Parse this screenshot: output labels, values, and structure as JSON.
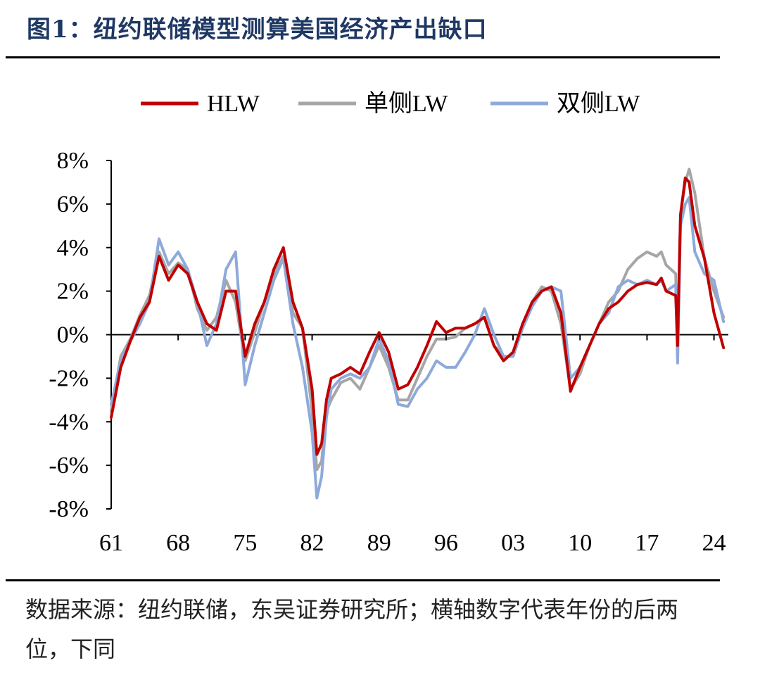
{
  "title": "图1：纽约联储模型测算美国经济产出缺口",
  "source_note": "数据来源：纽约联储，东吴证券研究所；横轴数字代表年份的后两位，下同",
  "chart_data": {
    "type": "line",
    "title": "纽约联储模型测算美国经济产出缺口",
    "xlabel": "",
    "ylabel": "",
    "x_range": [
      1961,
      2025.5
    ],
    "ylim": [
      -8,
      8
    ],
    "x_ticks": [
      1961,
      1968,
      1975,
      1982,
      1989,
      1996,
      2003,
      2010,
      2017,
      2024
    ],
    "x_tick_labels": [
      "61",
      "68",
      "75",
      "82",
      "89",
      "96",
      "03",
      "10",
      "17",
      "24"
    ],
    "y_ticks": [
      8,
      6,
      4,
      2,
      0,
      -2,
      -4,
      -6,
      -8
    ],
    "y_tick_labels": [
      "8%",
      "6%",
      "4%",
      "2%",
      "0%",
      "-2%",
      "-4%",
      "-6%",
      "-8%"
    ],
    "legend_position": "top-center",
    "series": [
      {
        "name": "单侧LW",
        "color": "#a6a6a6",
        "points": [
          [
            1961,
            -3.5
          ],
          [
            1962,
            -1.0
          ],
          [
            1963,
            -0.2
          ],
          [
            1964,
            0.9
          ],
          [
            1965,
            1.8
          ],
          [
            1966,
            3.8
          ],
          [
            1967,
            2.8
          ],
          [
            1968,
            3.3
          ],
          [
            1969,
            3.0
          ],
          [
            1970,
            1.2
          ],
          [
            1971,
            0.2
          ],
          [
            1972,
            0.8
          ],
          [
            1973,
            2.5
          ],
          [
            1974,
            1.5
          ],
          [
            1975,
            -1.2
          ],
          [
            1976,
            0.1
          ],
          [
            1977,
            1.5
          ],
          [
            1978,
            2.8
          ],
          [
            1979,
            3.6
          ],
          [
            1980,
            1.0
          ],
          [
            1981,
            0.3
          ],
          [
            1982,
            -3.5
          ],
          [
            1982.5,
            -6.2
          ],
          [
            1983,
            -5.8
          ],
          [
            1983.5,
            -3.5
          ],
          [
            1984,
            -3.0
          ],
          [
            1985,
            -2.2
          ],
          [
            1986,
            -2.0
          ],
          [
            1987,
            -2.5
          ],
          [
            1988,
            -1.5
          ],
          [
            1989,
            -0.5
          ],
          [
            1990,
            -1.5
          ],
          [
            1991,
            -3.0
          ],
          [
            1992,
            -3.0
          ],
          [
            1993,
            -2.0
          ],
          [
            1994,
            -1.0
          ],
          [
            1995,
            -0.2
          ],
          [
            1996,
            -0.2
          ],
          [
            1997,
            -0.1
          ],
          [
            1998,
            0.3
          ],
          [
            1999,
            0.5
          ],
          [
            2000,
            0.8
          ],
          [
            2001,
            -0.5
          ],
          [
            2002,
            -1.0
          ],
          [
            2003,
            -1.0
          ],
          [
            2004,
            0.5
          ],
          [
            2005,
            1.5
          ],
          [
            2006,
            2.2
          ],
          [
            2007,
            2.0
          ],
          [
            2008,
            0.5
          ],
          [
            2009,
            -2.5
          ],
          [
            2010,
            -1.8
          ],
          [
            2011,
            -0.5
          ],
          [
            2012,
            0.5
          ],
          [
            2013,
            1.5
          ],
          [
            2014,
            2.0
          ],
          [
            2015,
            3.0
          ],
          [
            2016,
            3.5
          ],
          [
            2017,
            3.8
          ],
          [
            2018,
            3.6
          ],
          [
            2018.5,
            3.8
          ],
          [
            2019,
            3.2
          ],
          [
            2020,
            2.8
          ],
          [
            2020.2,
            -0.8
          ],
          [
            2020.5,
            5.5
          ],
          [
            2021,
            7.0
          ],
          [
            2021.4,
            7.6
          ],
          [
            2022,
            6.5
          ],
          [
            2023,
            3.5
          ],
          [
            2024,
            2.0
          ],
          [
            2025,
            0.8
          ]
        ]
      },
      {
        "name": "双侧LW",
        "color": "#8eaadb",
        "points": [
          [
            1961,
            -3.2
          ],
          [
            1962,
            -1.2
          ],
          [
            1963,
            -0.3
          ],
          [
            1964,
            0.5
          ],
          [
            1965,
            1.5
          ],
          [
            1966,
            4.4
          ],
          [
            1967,
            3.2
          ],
          [
            1968,
            3.8
          ],
          [
            1969,
            3.0
          ],
          [
            1970,
            1.5
          ],
          [
            1971,
            -0.5
          ],
          [
            1972,
            0.5
          ],
          [
            1973,
            3.0
          ],
          [
            1974,
            3.8
          ],
          [
            1975,
            -2.3
          ],
          [
            1976,
            -0.5
          ],
          [
            1977,
            1.0
          ],
          [
            1978,
            2.5
          ],
          [
            1979,
            3.5
          ],
          [
            1980,
            0.5
          ],
          [
            1981,
            -1.5
          ],
          [
            1982,
            -4.5
          ],
          [
            1982.5,
            -7.5
          ],
          [
            1983,
            -6.5
          ],
          [
            1983.5,
            -3.8
          ],
          [
            1984,
            -2.5
          ],
          [
            1985,
            -2.0
          ],
          [
            1986,
            -1.8
          ],
          [
            1987,
            -2.0
          ],
          [
            1988,
            -1.5
          ],
          [
            1989,
            -0.2
          ],
          [
            1990,
            -1.2
          ],
          [
            1991,
            -3.2
          ],
          [
            1992,
            -3.3
          ],
          [
            1993,
            -2.5
          ],
          [
            1994,
            -2.0
          ],
          [
            1995,
            -1.2
          ],
          [
            1996,
            -1.5
          ],
          [
            1997,
            -1.5
          ],
          [
            1998,
            -0.8
          ],
          [
            1999,
            0.0
          ],
          [
            2000,
            1.2
          ],
          [
            2001,
            0.0
          ],
          [
            2002,
            -1.0
          ],
          [
            2003,
            -1.0
          ],
          [
            2004,
            0.3
          ],
          [
            2005,
            1.3
          ],
          [
            2006,
            2.0
          ],
          [
            2007,
            2.2
          ],
          [
            2008,
            2.0
          ],
          [
            2009,
            -2.0
          ],
          [
            2010,
            -1.5
          ],
          [
            2011,
            -0.5
          ],
          [
            2012,
            0.5
          ],
          [
            2013,
            1.0
          ],
          [
            2014,
            2.2
          ],
          [
            2015,
            2.5
          ],
          [
            2016,
            2.3
          ],
          [
            2017,
            2.5
          ],
          [
            2018,
            2.3
          ],
          [
            2018.5,
            2.5
          ],
          [
            2019,
            2.0
          ],
          [
            2020,
            2.3
          ],
          [
            2020.2,
            -1.3
          ],
          [
            2020.5,
            5.0
          ],
          [
            2021,
            6.0
          ],
          [
            2021.4,
            6.3
          ],
          [
            2022,
            3.8
          ],
          [
            2023,
            2.8
          ],
          [
            2024,
            2.5
          ],
          [
            2025,
            0.6
          ]
        ]
      },
      {
        "name": "HLW",
        "color": "#c00000",
        "points": [
          [
            1961,
            -3.8
          ],
          [
            1962,
            -1.5
          ],
          [
            1963,
            -0.3
          ],
          [
            1964,
            0.8
          ],
          [
            1965,
            1.5
          ],
          [
            1966,
            3.6
          ],
          [
            1967,
            2.5
          ],
          [
            1968,
            3.2
          ],
          [
            1969,
            2.8
          ],
          [
            1970,
            1.5
          ],
          [
            1971,
            0.5
          ],
          [
            1972,
            0.2
          ],
          [
            1973,
            2.0
          ],
          [
            1974,
            2.0
          ],
          [
            1975,
            -1.0
          ],
          [
            1976,
            0.5
          ],
          [
            1977,
            1.5
          ],
          [
            1978,
            3.0
          ],
          [
            1979,
            4.0
          ],
          [
            1980,
            1.5
          ],
          [
            1981,
            0.3
          ],
          [
            1982,
            -2.5
          ],
          [
            1982.5,
            -5.5
          ],
          [
            1983,
            -5.0
          ],
          [
            1983.5,
            -3.0
          ],
          [
            1984,
            -2.0
          ],
          [
            1985,
            -1.8
          ],
          [
            1986,
            -1.5
          ],
          [
            1987,
            -1.8
          ],
          [
            1988,
            -0.8
          ],
          [
            1989,
            0.1
          ],
          [
            1990,
            -0.8
          ],
          [
            1991,
            -2.5
          ],
          [
            1992,
            -2.3
          ],
          [
            1993,
            -1.5
          ],
          [
            1994,
            -0.5
          ],
          [
            1995,
            0.6
          ],
          [
            1996,
            0.1
          ],
          [
            1997,
            0.3
          ],
          [
            1998,
            0.3
          ],
          [
            1999,
            0.5
          ],
          [
            2000,
            0.8
          ],
          [
            2001,
            -0.5
          ],
          [
            2002,
            -1.2
          ],
          [
            2003,
            -0.8
          ],
          [
            2004,
            0.5
          ],
          [
            2005,
            1.5
          ],
          [
            2006,
            2.0
          ],
          [
            2007,
            2.2
          ],
          [
            2008,
            1.0
          ],
          [
            2009,
            -2.6
          ],
          [
            2010,
            -1.5
          ],
          [
            2011,
            -0.5
          ],
          [
            2012,
            0.5
          ],
          [
            2013,
            1.2
          ],
          [
            2014,
            1.5
          ],
          [
            2015,
            2.0
          ],
          [
            2016,
            2.3
          ],
          [
            2017,
            2.4
          ],
          [
            2018,
            2.3
          ],
          [
            2018.5,
            2.6
          ],
          [
            2019,
            2.0
          ],
          [
            2020,
            1.8
          ],
          [
            2020.2,
            -0.5
          ],
          [
            2020.5,
            5.5
          ],
          [
            2021,
            7.2
          ],
          [
            2021.4,
            7.0
          ],
          [
            2022,
            5.0
          ],
          [
            2023,
            3.5
          ],
          [
            2024,
            1.0
          ],
          [
            2025,
            -0.6
          ]
        ]
      }
    ],
    "legend_order": [
      "HLW",
      "单侧LW",
      "双侧LW"
    ]
  }
}
